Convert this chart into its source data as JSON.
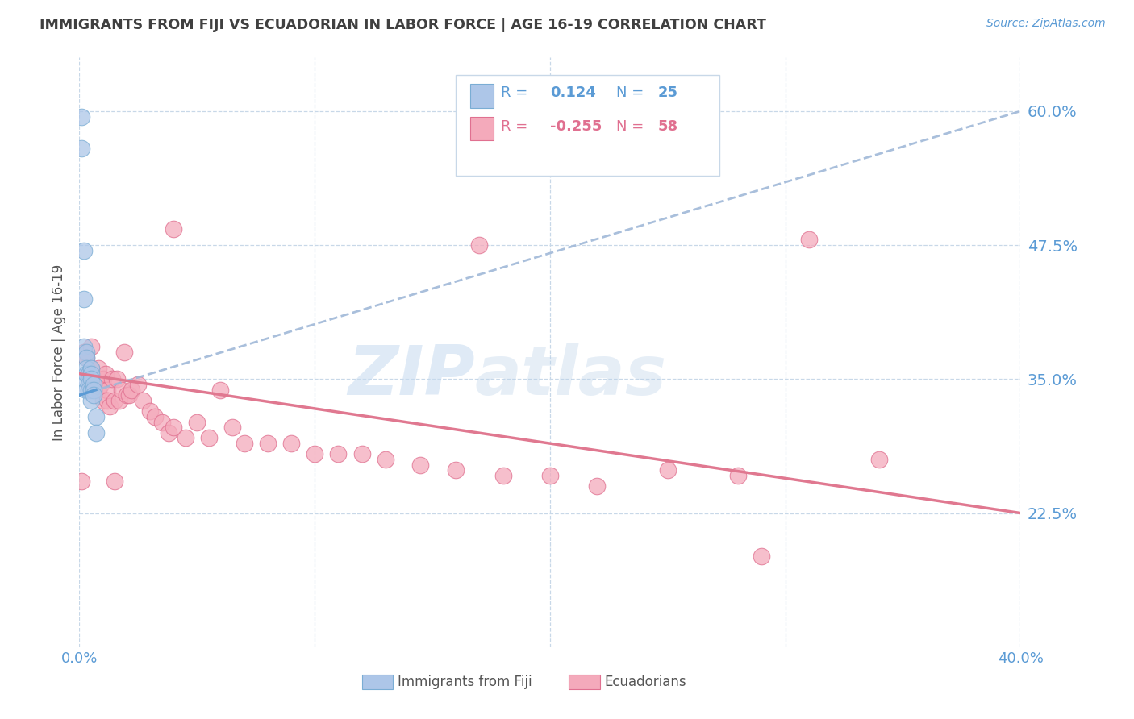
{
  "title": "IMMIGRANTS FROM FIJI VS ECUADORIAN IN LABOR FORCE | AGE 16-19 CORRELATION CHART",
  "source": "Source: ZipAtlas.com",
  "ylabel": "In Labor Force | Age 16-19",
  "ytick_labels": [
    "22.5%",
    "35.0%",
    "47.5%",
    "60.0%"
  ],
  "ytick_values": [
    0.225,
    0.35,
    0.475,
    0.6
  ],
  "xlim": [
    0.0,
    0.4
  ],
  "ylim": [
    0.1,
    0.65
  ],
  "fiji_color": "#adc6e8",
  "fiji_edge_color": "#7aadd4",
  "ecuador_color": "#f4aabb",
  "ecuador_edge_color": "#e07090",
  "fiji_label": "Immigrants from Fiji",
  "ecuador_label": "Ecuadorians",
  "fiji_trend_color": "#a0b8d8",
  "ecuador_trend_color": "#e07890",
  "watermark_zip": "ZIP",
  "watermark_atlas": "atlas",
  "fiji_x": [
    0.001,
    0.001,
    0.002,
    0.002,
    0.002,
    0.002,
    0.003,
    0.003,
    0.003,
    0.003,
    0.003,
    0.004,
    0.004,
    0.004,
    0.004,
    0.005,
    0.005,
    0.005,
    0.005,
    0.005,
    0.006,
    0.006,
    0.006,
    0.007,
    0.007
  ],
  "fiji_y": [
    0.595,
    0.565,
    0.47,
    0.425,
    0.38,
    0.35,
    0.375,
    0.37,
    0.36,
    0.355,
    0.34,
    0.355,
    0.35,
    0.345,
    0.34,
    0.36,
    0.355,
    0.35,
    0.34,
    0.33,
    0.345,
    0.34,
    0.335,
    0.315,
    0.3
  ],
  "ecuador_x": [
    0.001,
    0.002,
    0.003,
    0.004,
    0.005,
    0.005,
    0.006,
    0.007,
    0.008,
    0.008,
    0.009,
    0.01,
    0.01,
    0.011,
    0.012,
    0.012,
    0.013,
    0.014,
    0.015,
    0.016,
    0.017,
    0.018,
    0.019,
    0.02,
    0.021,
    0.022,
    0.025,
    0.027,
    0.03,
    0.032,
    0.035,
    0.038,
    0.04,
    0.045,
    0.05,
    0.055,
    0.06,
    0.065,
    0.07,
    0.08,
    0.09,
    0.1,
    0.11,
    0.12,
    0.13,
    0.145,
    0.16,
    0.18,
    0.2,
    0.22,
    0.25,
    0.28,
    0.31,
    0.34,
    0.015,
    0.04,
    0.17,
    0.29
  ],
  "ecuador_y": [
    0.255,
    0.375,
    0.37,
    0.355,
    0.38,
    0.36,
    0.35,
    0.345,
    0.36,
    0.34,
    0.345,
    0.35,
    0.33,
    0.355,
    0.34,
    0.33,
    0.325,
    0.35,
    0.33,
    0.35,
    0.33,
    0.34,
    0.375,
    0.335,
    0.335,
    0.34,
    0.345,
    0.33,
    0.32,
    0.315,
    0.31,
    0.3,
    0.305,
    0.295,
    0.31,
    0.295,
    0.34,
    0.305,
    0.29,
    0.29,
    0.29,
    0.28,
    0.28,
    0.28,
    0.275,
    0.27,
    0.265,
    0.26,
    0.26,
    0.25,
    0.265,
    0.26,
    0.48,
    0.275,
    0.255,
    0.49,
    0.475,
    0.185
  ],
  "fiji_trend_x": [
    0.0,
    0.4
  ],
  "fiji_trend_y": [
    0.335,
    0.6
  ],
  "ecuador_trend_x": [
    0.0,
    0.4
  ],
  "ecuador_trend_y": [
    0.355,
    0.225
  ],
  "legend_R1": "R = ",
  "legend_V1": "0.124",
  "legend_N1": "N = ",
  "legend_NV1": "25",
  "legend_R2": "R = ",
  "legend_V2": "-0.255",
  "legend_N2": "N = ",
  "legend_NV2": "58",
  "grid_color": "#c8d8e8",
  "text_color": "#5b9bd5",
  "title_color": "#404040"
}
